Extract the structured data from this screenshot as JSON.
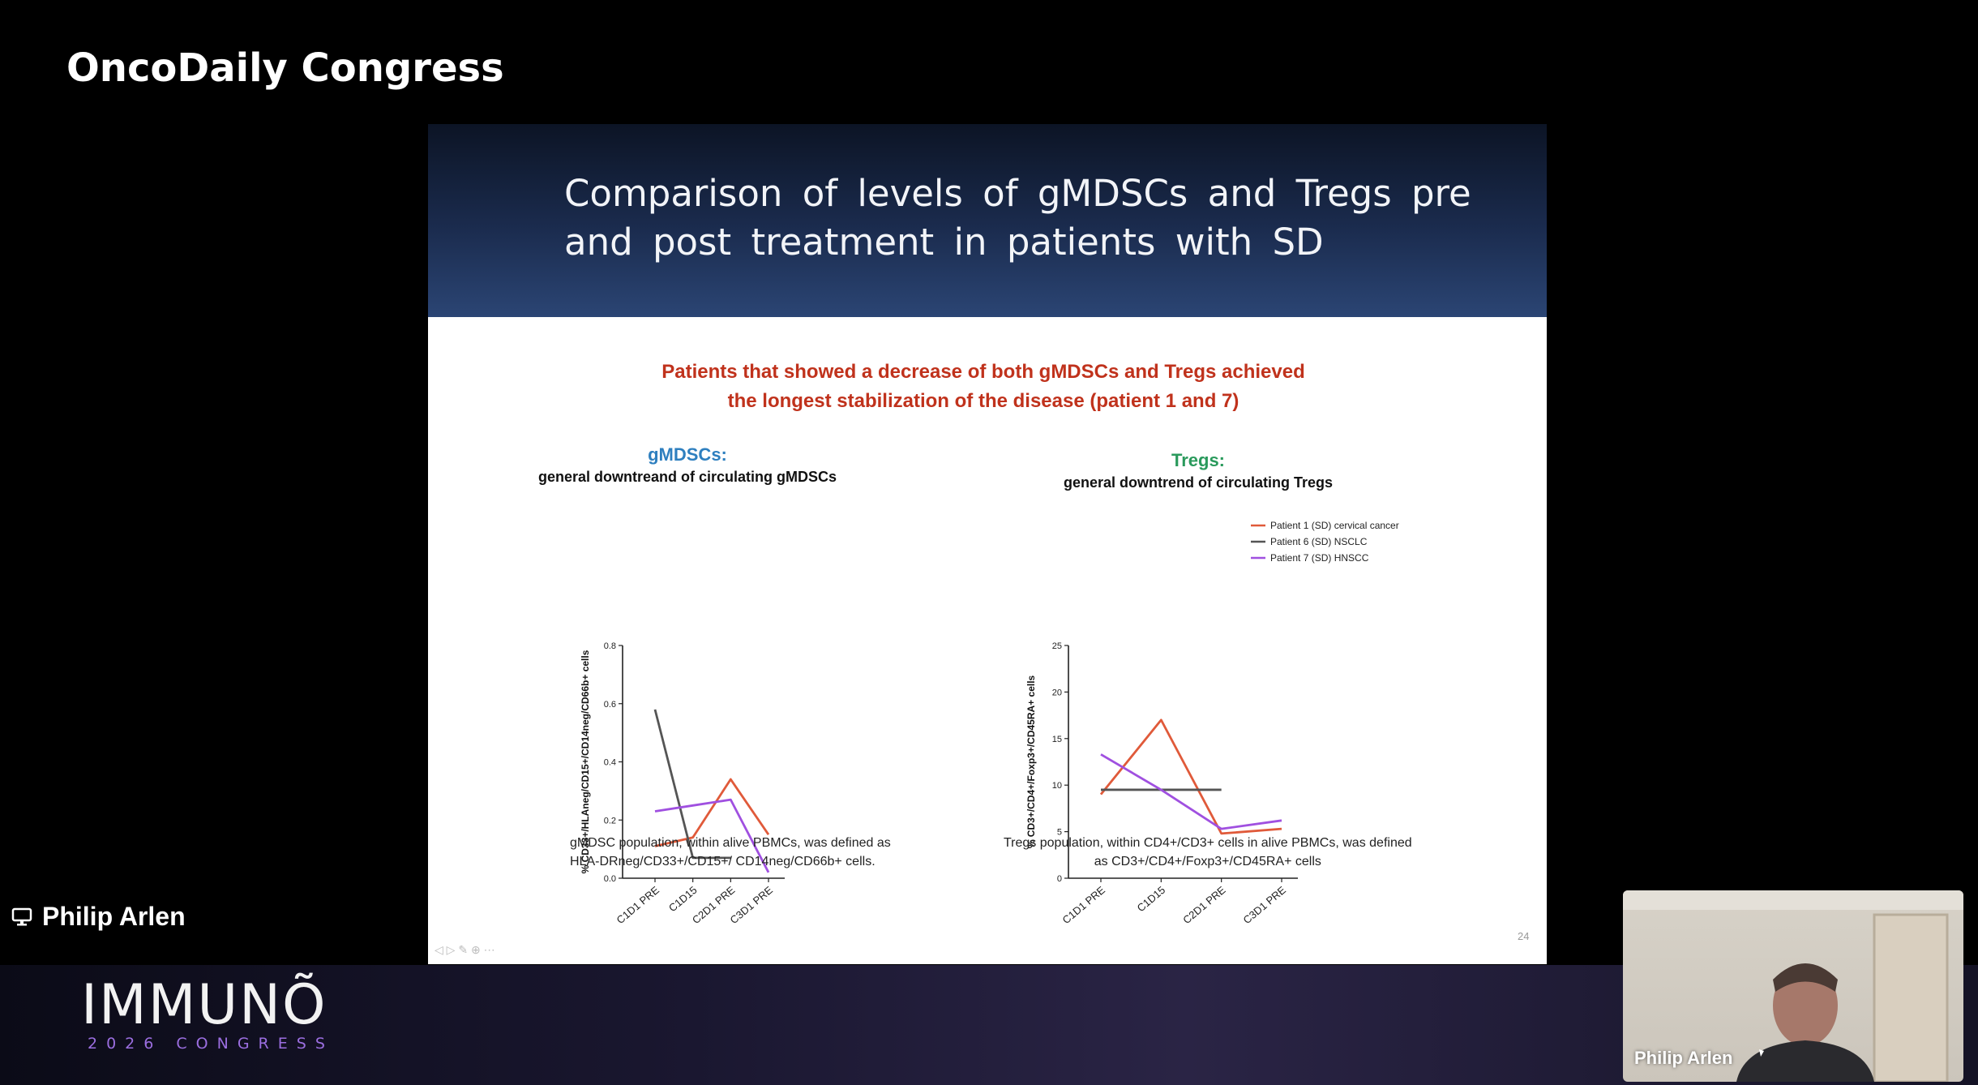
{
  "brand": "OncoDaily Congress",
  "slide": {
    "title": "Comparison of levels of gMDSCs and Tregs pre and post treatment in patients with SD",
    "subtitle_line1": "Patients that showed a decrease of both gMDSCs and Tregs achieved",
    "subtitle_line2": "the longest stabilization of the disease (patient 1 and 7)",
    "page_number": "24",
    "left_panel": {
      "heading": "gMDSCs:",
      "subheading": "general downtreand of circulating gMDSCs",
      "caption_line1": "gMDSC population, within alive PBMCs, was defined as",
      "caption_line2": "HLA-DRneg/CD33+/CD15+/ CD14neg/CD66b+ cells."
    },
    "right_panel": {
      "heading": "Tregs:",
      "subheading": "general downtrend of circulating Tregs",
      "caption_line1": "Tregs population, within CD4+/CD3+ cells in alive PBMCs, was defined",
      "caption_line2": "as CD3+/CD4+/Foxp3+/CD45RA+ cells"
    }
  },
  "chart_data": [
    {
      "type": "line",
      "categories": [
        "C1D1 PRE",
        "C1D15",
        "C2D1 PRE",
        "C3D1 PRE"
      ],
      "ylabel": "% CD33+/HLAneg/CD15+/CD14neg/CD66b+ cells",
      "ylim": [
        0,
        0.8
      ],
      "yticks": [
        "0.0",
        "0.2",
        "0.4",
        "0.6",
        "0.8"
      ],
      "series": [
        {
          "color": "#e05a3a",
          "values": [
            0.11,
            0.14,
            0.34,
            0.15
          ]
        },
        {
          "color": "#555555",
          "values": [
            0.58,
            0.07,
            0.07,
            null
          ]
        },
        {
          "color": "#a050e0",
          "values": [
            0.23,
            0.25,
            0.27,
            0.02
          ]
        }
      ]
    },
    {
      "type": "line",
      "categories": [
        "C1D1 PRE",
        "C1D15",
        "C2D1 PRE",
        "C3D1 PRE"
      ],
      "ylabel": "% CD3+/CD4+/Foxp3+/CD45RA+ cells",
      "ylim": [
        0,
        25
      ],
      "yticks": [
        "0",
        "5",
        "10",
        "15",
        "20",
        "25"
      ],
      "series": [
        {
          "name": "Patient 1 (SD) cervical cancer",
          "color": "#e05a3a",
          "values": [
            9,
            17,
            4.8,
            5.3
          ]
        },
        {
          "name": "Patient 6 (SD) NSCLC",
          "color": "#555555",
          "values": [
            9.5,
            9.5,
            9.5,
            null
          ]
        },
        {
          "name": "Patient 7 (SD) HNSCC",
          "color": "#a050e0",
          "values": [
            13.3,
            9.5,
            5.3,
            6.2
          ]
        }
      ]
    }
  ],
  "presenter": {
    "name": "Philip Arlen",
    "icon": "monitor-icon"
  },
  "event": {
    "logo": "IMMUNÕ",
    "sub": "2026 CONGRESS"
  },
  "webcam": {
    "name": "Philip Arlen"
  }
}
